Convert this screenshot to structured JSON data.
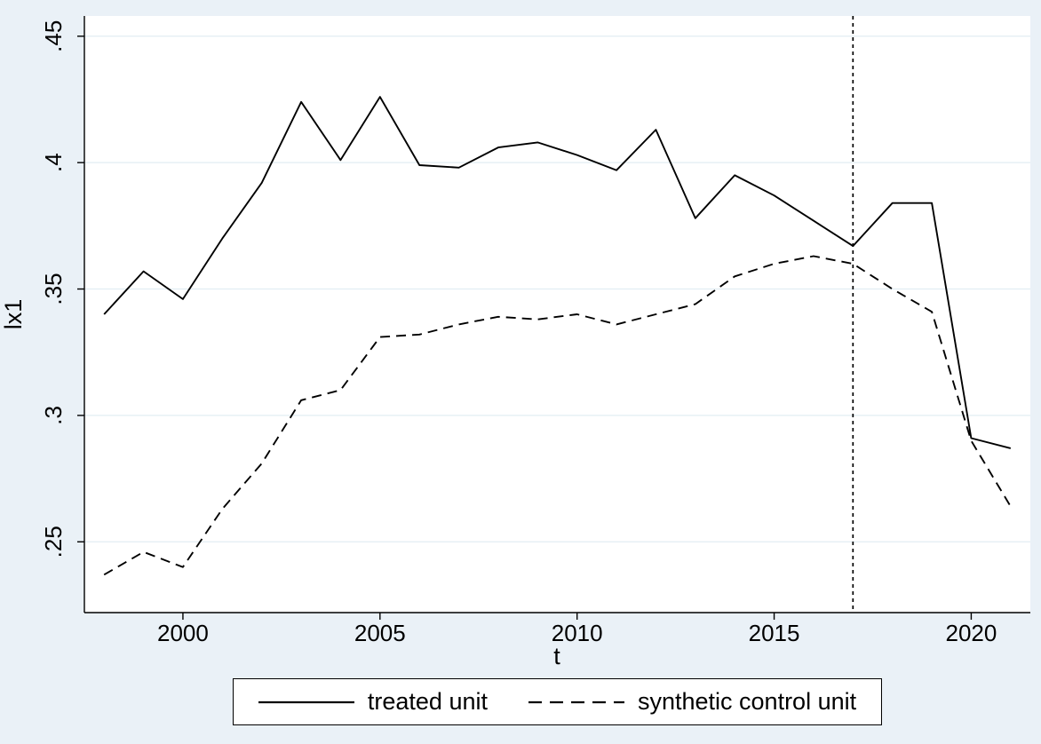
{
  "figure": {
    "background": "#eaf1f7",
    "plot_background": "#ffffff",
    "grid_color": "#e2edf3",
    "axis_color": "#000000"
  },
  "chart_data": {
    "type": "line",
    "title": "",
    "xlabel": "t",
    "ylabel": "lx1",
    "x_range": [
      1997.5,
      2021.5
    ],
    "y_range": [
      0.222,
      0.458
    ],
    "grid": "horizontal",
    "legend_position": "bottom",
    "x_ticks": {
      "values": [
        2000,
        2005,
        2010,
        2015,
        2020
      ],
      "labels": [
        "2000",
        "2005",
        "2010",
        "2015",
        "2020"
      ]
    },
    "y_ticks": {
      "values": [
        0.25,
        0.3,
        0.35,
        0.4,
        0.45
      ],
      "labels": [
        ".25",
        ".3",
        ".35",
        ".4",
        ".45"
      ]
    },
    "x": [
      1998,
      1999,
      2000,
      2001,
      2002,
      2003,
      2004,
      2005,
      2006,
      2007,
      2008,
      2009,
      2010,
      2011,
      2012,
      2013,
      2014,
      2015,
      2016,
      2017,
      2018,
      2019,
      2020,
      2021
    ],
    "series": [
      {
        "name": "treated unit",
        "style": "solid",
        "color": "#000000",
        "values": [
          0.34,
          0.357,
          0.346,
          0.37,
          0.392,
          0.424,
          0.401,
          0.426,
          0.399,
          0.398,
          0.406,
          0.408,
          0.403,
          0.397,
          0.413,
          0.378,
          0.395,
          0.387,
          0.377,
          0.367,
          0.384,
          0.384,
          0.291,
          0.287
        ]
      },
      {
        "name": "synthetic control unit",
        "style": "dashed",
        "color": "#000000",
        "values": [
          0.237,
          0.246,
          0.24,
          0.263,
          0.281,
          0.306,
          0.31,
          0.331,
          0.332,
          0.336,
          0.339,
          0.338,
          0.34,
          0.336,
          0.34,
          0.344,
          0.355,
          0.36,
          0.363,
          0.36,
          0.35,
          0.341,
          0.29,
          0.264
        ]
      }
    ],
    "reference_line": {
      "x": 2017,
      "style": "dashed",
      "color": "#000000"
    }
  }
}
